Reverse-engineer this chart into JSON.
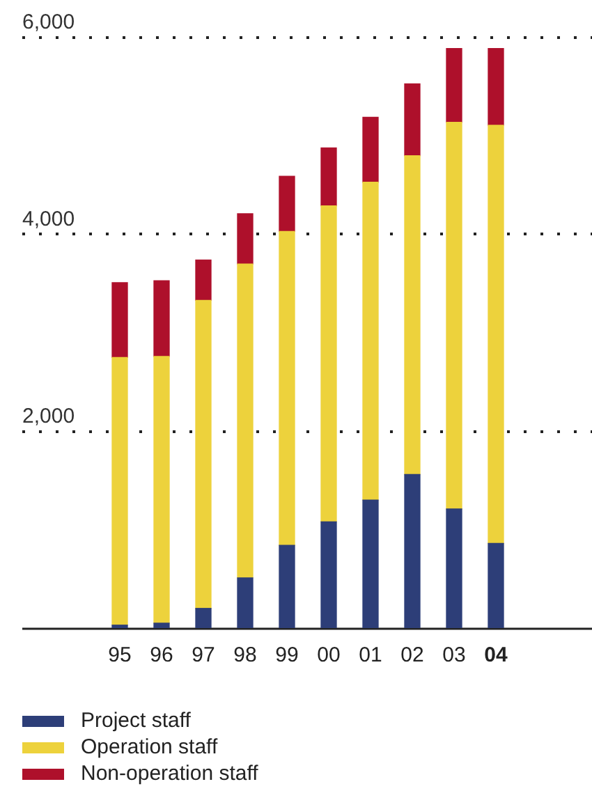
{
  "chart_data": {
    "type": "bar",
    "stacked": true,
    "categories": [
      "95",
      "96",
      "97",
      "98",
      "99",
      "00",
      "01",
      "02",
      "03",
      "04"
    ],
    "series": [
      {
        "name": "Project staff",
        "color": "#2d3e78",
        "values": [
          30,
          50,
          200,
          510,
          840,
          1080,
          1300,
          1560,
          1210,
          860
        ]
      },
      {
        "name": "Operation staff",
        "color": "#edd23c",
        "values": [
          2720,
          2710,
          3130,
          3190,
          3190,
          3210,
          3230,
          3240,
          3930,
          4250
        ]
      },
      {
        "name": "Non-operation staff",
        "color": "#ae102b",
        "values": [
          760,
          770,
          410,
          510,
          560,
          590,
          660,
          730,
          750,
          780
        ]
      }
    ],
    "ylim": [
      0,
      6000
    ],
    "yticks": [
      {
        "value": 2000,
        "label": "2,000"
      },
      {
        "value": 4000,
        "label": "4,000"
      },
      {
        "value": 6000,
        "label": "6,000"
      }
    ],
    "grid": "y",
    "legend": "bottom left"
  }
}
